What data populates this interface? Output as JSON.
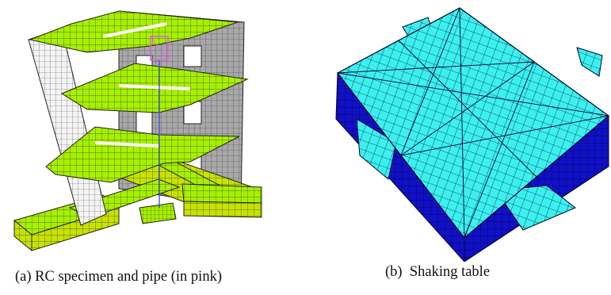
{
  "captions": {
    "a": "(a) RC specimen and pipe (in pink)",
    "b": "(b)  Shaking table"
  },
  "colors": {
    "slab_green": "#a6f000",
    "mesh_dark": "#2e3a10",
    "wall_white": "#f4f4f4",
    "wall_grey": "#a8a8a8",
    "wall_front_grey": "#8e8e8e",
    "pipe_pink": "#e060e8",
    "pipe_blue": "#3a4bd8",
    "table_cyan": "#3cf0f0",
    "table_blue": "#1010c8",
    "table_edge": "#050530"
  }
}
